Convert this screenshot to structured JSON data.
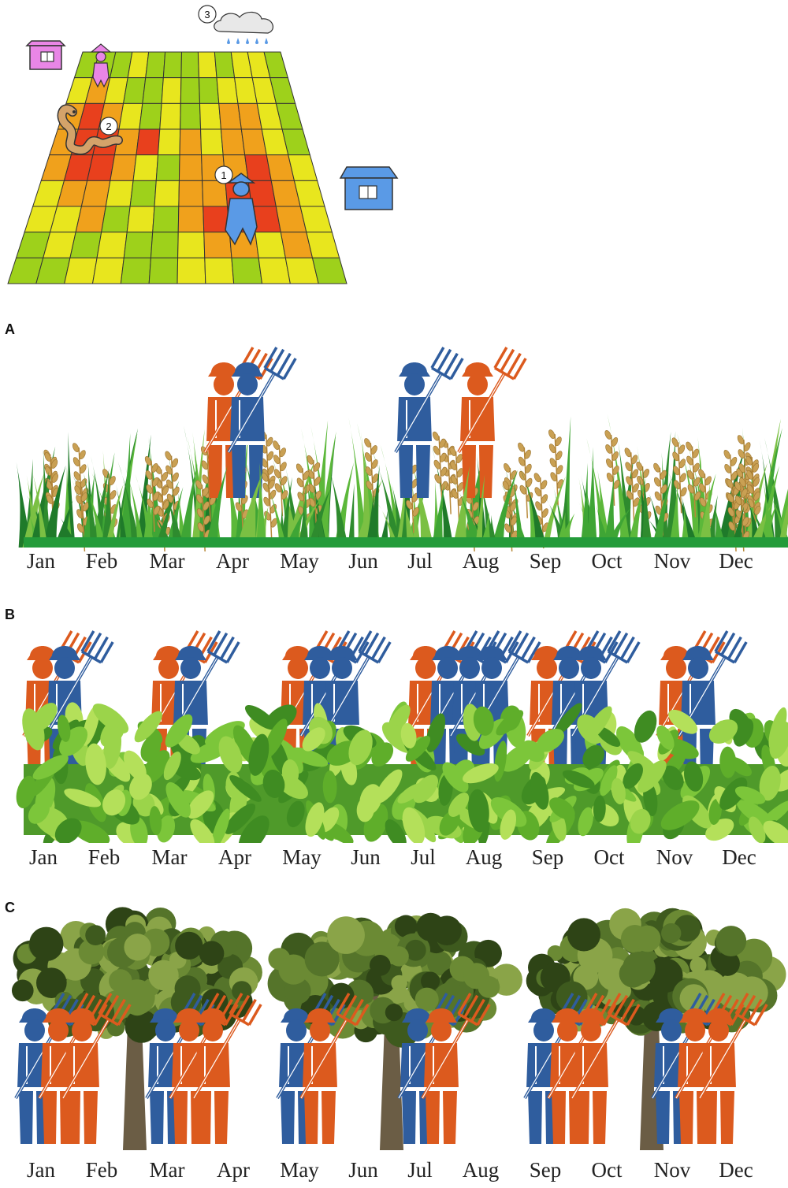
{
  "panels": [
    {
      "letter": "A",
      "crop": "rice"
    },
    {
      "letter": "B",
      "crop": "tea"
    },
    {
      "letter": "C",
      "crop": "fruit-tree"
    }
  ],
  "months": [
    "Jan",
    "Feb",
    "Mar",
    "Apr",
    "May",
    "Jun",
    "Jul",
    "Aug",
    "Sep",
    "Oct",
    "Nov",
    "Dec"
  ],
  "grid_markers": [
    "1",
    "2",
    "3"
  ],
  "colors": {
    "worker_blue": "#2f5d9e",
    "worker_orange": "#dc5a1e",
    "house_pink": "#e986e6",
    "house_blue": "#5a9ae6",
    "grid_green": "#9ed11b",
    "grid_yellow": "#e8e61e",
    "grid_orange": "#f0a11c",
    "grid_red": "#e8401d"
  },
  "panel_a_workers": [
    {
      "month": "Apr",
      "colors": [
        "orange",
        "blue"
      ]
    },
    {
      "month": "Jul",
      "colors": [
        "blue",
        "orange"
      ]
    }
  ],
  "panel_b_workers": [
    {
      "month": "Jan",
      "colors": [
        "orange",
        "blue"
      ]
    },
    {
      "month": "Mar",
      "colors": [
        "orange",
        "blue"
      ]
    },
    {
      "month": "May",
      "colors": [
        "orange",
        "blue",
        "blue"
      ]
    },
    {
      "month": "Jul",
      "colors": [
        "orange",
        "blue",
        "blue",
        "blue"
      ]
    },
    {
      "month": "Sep",
      "colors": [
        "orange",
        "blue",
        "blue"
      ]
    },
    {
      "month": "Nov",
      "colors": [
        "orange",
        "blue"
      ]
    }
  ],
  "panel_c_workers": [
    {
      "month": "Jan",
      "colors": [
        "blue",
        "orange",
        "orange"
      ]
    },
    {
      "month": "Mar",
      "colors": [
        "blue",
        "orange",
        "orange"
      ]
    },
    {
      "month": "May",
      "colors": [
        "blue",
        "orange"
      ]
    },
    {
      "month": "Jul",
      "colors": [
        "blue",
        "orange"
      ]
    },
    {
      "month": "Sep",
      "colors": [
        "blue",
        "orange",
        "orange"
      ]
    },
    {
      "month": "Nov",
      "colors": [
        "blue",
        "orange",
        "orange"
      ]
    }
  ]
}
